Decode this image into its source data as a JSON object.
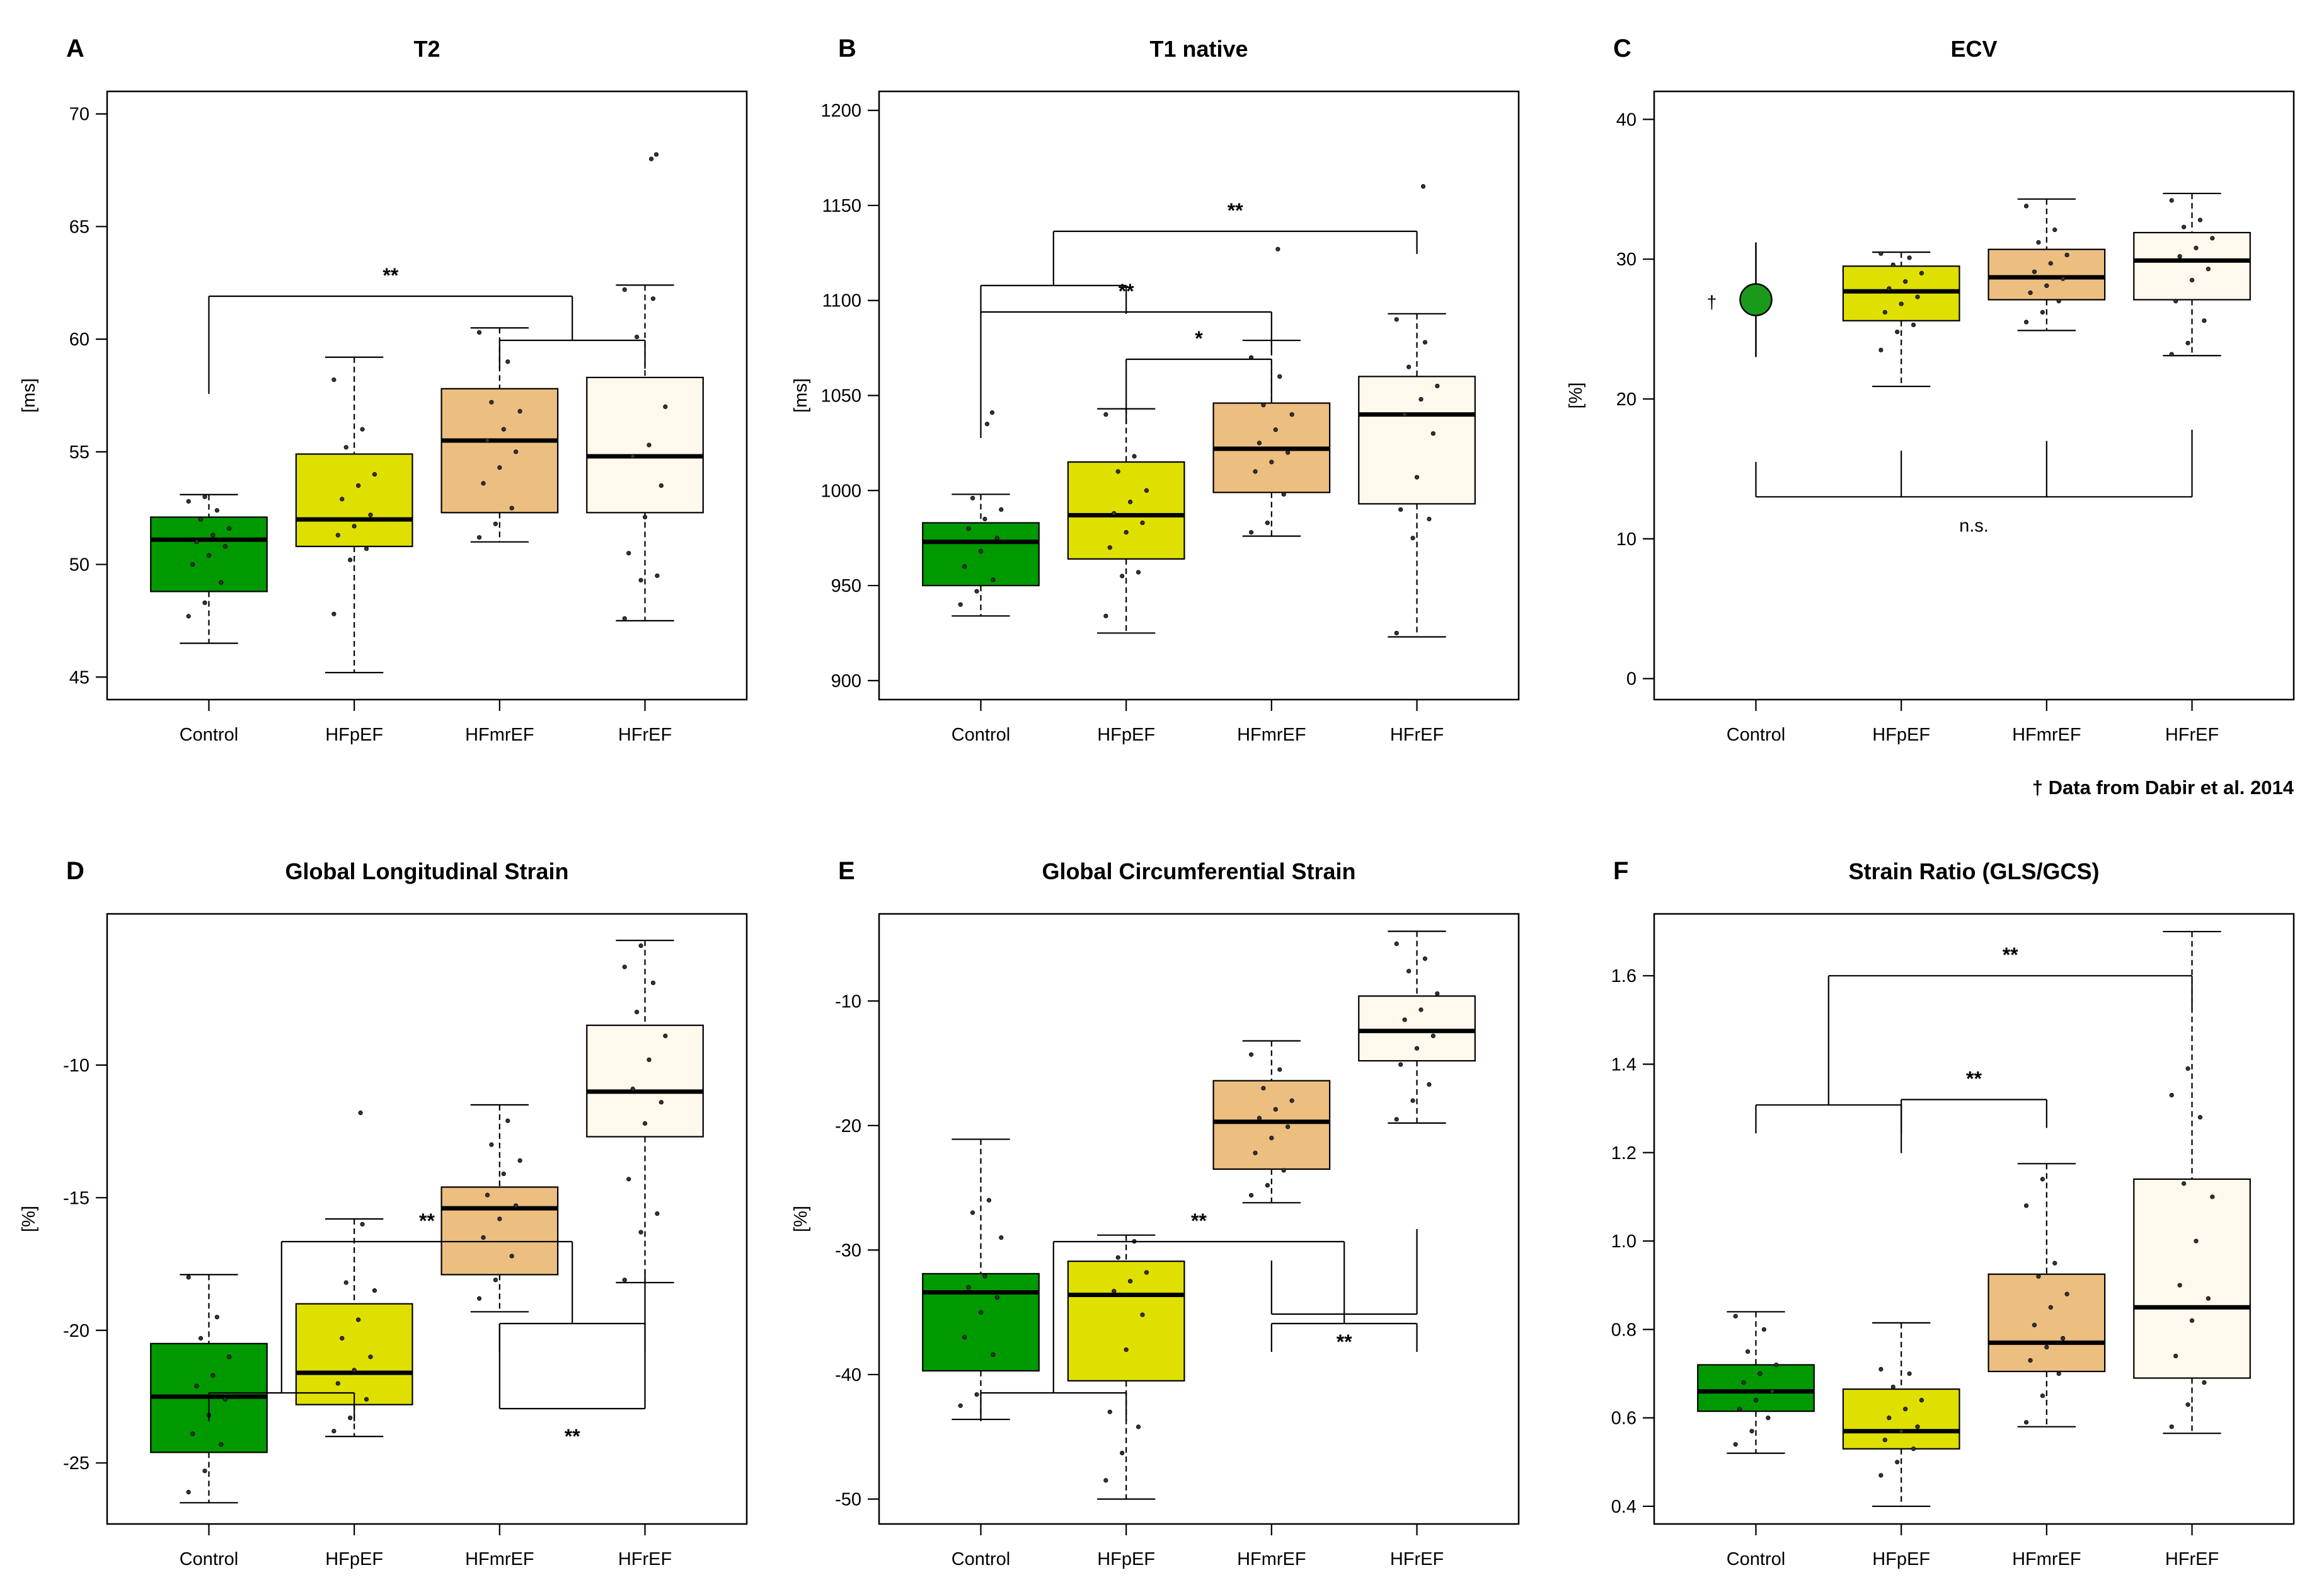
{
  "colors": {
    "Control": "#009a00",
    "HFpEF": "#dfe000",
    "HFmrEF": "#ecbf80",
    "HFrEF": "#fef9ec",
    "ecv_marker": "#1a9a1a"
  },
  "footnote": "† Data from Dabir et al. 2014",
  "chart_data": [
    {
      "type": "box",
      "letter": "A",
      "title": "T2",
      "xlabel": "",
      "ylabel": "[ms]",
      "categories": [
        "Control",
        "HFpEF",
        "HFmrEF",
        "HFrEF"
      ],
      "ylim": [
        44,
        71
      ],
      "yticks": [
        "45",
        "50",
        "55",
        "60",
        "65",
        "70"
      ],
      "boxes": [
        {
          "whisker_low": 46.5,
          "q1": 48.8,
          "median": 51.1,
          "q3": 52.1,
          "whisker_high": 53.1,
          "points": [
            47.7,
            48.3,
            49.2,
            50.0,
            50.4,
            50.8,
            51.0,
            51.3,
            51.6,
            52.0,
            52.4,
            52.8,
            53.0
          ]
        },
        {
          "whisker_low": 45.2,
          "q1": 50.8,
          "median": 52.0,
          "q3": 54.9,
          "whisker_high": 59.2,
          "points": [
            47.8,
            50.2,
            50.7,
            51.3,
            51.7,
            52.2,
            52.9,
            53.5,
            54.0,
            55.2,
            56.0,
            58.2
          ]
        },
        {
          "whisker_low": 51.0,
          "q1": 52.3,
          "median": 55.5,
          "q3": 57.8,
          "whisker_high": 60.5,
          "points": [
            51.2,
            51.8,
            52.5,
            53.6,
            54.3,
            55.0,
            55.5,
            56.0,
            56.8,
            57.2,
            59.0,
            60.3
          ]
        },
        {
          "whisker_low": 47.5,
          "q1": 52.3,
          "median": 54.8,
          "q3": 58.3,
          "whisker_high": 62.4,
          "points": [
            47.6,
            49.3,
            49.5,
            50.5,
            52.1,
            53.5,
            54.8,
            55.3,
            57.0,
            60.1,
            61.8,
            62.2
          ],
          "outliers": [
            68.0,
            68.2
          ]
        }
      ],
      "brackets": [
        {
          "pair": [
            0,
            [
              2,
              3
            ]
          ],
          "label": "**"
        }
      ]
    },
    {
      "type": "box",
      "letter": "B",
      "title": "T1 native",
      "xlabel": "",
      "ylabel": "[ms]",
      "categories": [
        "Control",
        "HFpEF",
        "HFmrEF",
        "HFrEF"
      ],
      "ylim": [
        890,
        1210
      ],
      "yticks": [
        "900",
        "950",
        "1000",
        "1050",
        "1100",
        "1150",
        "1200"
      ],
      "boxes": [
        {
          "whisker_low": 934,
          "q1": 950,
          "median": 973,
          "q3": 983,
          "whisker_high": 998,
          "points": [
            940,
            947,
            953,
            960,
            968,
            975,
            980,
            985,
            990,
            996
          ],
          "outliers": [
            1035,
            1041
          ]
        },
        {
          "whisker_low": 925,
          "q1": 964,
          "median": 987,
          "q3": 1015,
          "whisker_high": 1043,
          "points": [
            934,
            955,
            957,
            970,
            978,
            983,
            988,
            994,
            1000,
            1010,
            1018,
            1040
          ]
        },
        {
          "whisker_low": 976,
          "q1": 999,
          "median": 1022,
          "q3": 1046,
          "whisker_high": 1079,
          "points": [
            978,
            983,
            998,
            1010,
            1015,
            1020,
            1025,
            1032,
            1040,
            1045,
            1060,
            1070
          ],
          "outliers": [
            1127
          ]
        },
        {
          "whisker_low": 923,
          "q1": 993,
          "median": 1040,
          "q3": 1060,
          "whisker_high": 1093,
          "points": [
            925,
            975,
            985,
            990,
            1007,
            1030,
            1040,
            1048,
            1055,
            1065,
            1078,
            1090
          ],
          "outliers": [
            1160
          ]
        }
      ],
      "brackets": [
        {
          "pair": [
            [
              0,
              1
            ],
            3
          ],
          "label": "**"
        },
        {
          "pair": [
            0,
            2
          ],
          "label": "**"
        },
        {
          "pair": [
            1,
            2
          ],
          "label": "*"
        }
      ]
    },
    {
      "type": "box",
      "letter": "C",
      "title": "ECV",
      "xlabel": "",
      "ylabel": "[%]",
      "categories": [
        "Control",
        "HFpEF",
        "HFmrEF",
        "HFrEF"
      ],
      "ylim": [
        -1.5,
        42
      ],
      "yticks": [
        "0",
        "10",
        "20",
        "30",
        "40"
      ],
      "reference": {
        "index": 0,
        "mean": 27.1,
        "low": 23.0,
        "high": 31.2,
        "marker": "†"
      },
      "boxes": [
        null,
        {
          "whisker_low": 20.9,
          "q1": 25.6,
          "median": 27.7,
          "q3": 29.5,
          "whisker_high": 30.5,
          "points": [
            23.5,
            24.8,
            25.3,
            26.2,
            26.8,
            27.3,
            27.9,
            28.4,
            29.0,
            29.6,
            30.1,
            30.4
          ]
        },
        {
          "whisker_low": 24.9,
          "q1": 27.1,
          "median": 28.7,
          "q3": 30.7,
          "whisker_high": 34.3,
          "points": [
            25.5,
            26.2,
            27.0,
            27.6,
            28.1,
            28.6,
            29.1,
            29.7,
            30.3,
            31.2,
            32.1,
            33.8
          ]
        },
        {
          "whisker_low": 23.1,
          "q1": 27.1,
          "median": 29.9,
          "q3": 31.9,
          "whisker_high": 34.7,
          "points": [
            23.2,
            24.0,
            25.6,
            27.0,
            28.5,
            29.3,
            30.2,
            30.8,
            31.5,
            32.3,
            32.8,
            34.2
          ]
        }
      ],
      "brackets": [],
      "comb": {
        "members": [
          0,
          1,
          2,
          3
        ],
        "label": "n.s."
      }
    },
    {
      "type": "box",
      "letter": "D",
      "title": "Global Longitudinal Strain",
      "xlabel": "",
      "ylabel": "[%]",
      "categories": [
        "Control",
        "HFpEF",
        "HFmrEF",
        "HFrEF"
      ],
      "ylim": [
        -27.3,
        -4.3
      ],
      "yticks": [
        "-25",
        "-20",
        "-15",
        "-10"
      ],
      "boxes": [
        {
          "whisker_low": -26.5,
          "q1": -24.6,
          "median": -22.5,
          "q3": -20.5,
          "whisker_high": -17.9,
          "points": [
            -26.1,
            -25.3,
            -24.3,
            -23.9,
            -23.2,
            -22.6,
            -22.1,
            -21.7,
            -21.0,
            -20.3,
            -19.5,
            -18.0
          ]
        },
        {
          "whisker_low": -24.0,
          "q1": -22.8,
          "median": -21.6,
          "q3": -19.0,
          "whisker_high": -15.8,
          "points": [
            -23.8,
            -23.3,
            -22.6,
            -22.0,
            -21.5,
            -21.0,
            -20.3,
            -19.6,
            -18.5,
            -18.2,
            -16.0
          ],
          "outliers": [
            -11.8
          ]
        },
        {
          "whisker_low": -19.3,
          "q1": -17.9,
          "median": -15.4,
          "q3": -14.6,
          "whisker_high": -11.5,
          "points": [
            -18.8,
            -18.1,
            -17.2,
            -16.5,
            -15.8,
            -15.3,
            -14.9,
            -14.1,
            -13.6,
            -13.0,
            -12.1
          ]
        },
        {
          "whisker_low": -18.2,
          "q1": -12.7,
          "median": -11.0,
          "q3": -8.5,
          "whisker_high": -5.3,
          "points": [
            -18.1,
            -16.3,
            -15.6,
            -14.3,
            -12.2,
            -11.4,
            -10.9,
            -9.8,
            -8.9,
            -8.0,
            -6.9,
            -6.3,
            -5.5
          ]
        }
      ],
      "brackets": [
        {
          "pair": [
            [
              0,
              1
            ],
            [
              2,
              3
            ]
          ],
          "label": "**"
        },
        {
          "pair": [
            2,
            3
          ],
          "label": "**",
          "below": true
        }
      ]
    },
    {
      "type": "box",
      "letter": "E",
      "title": "Global Circumferential Strain",
      "xlabel": "",
      "ylabel": "[%]",
      "categories": [
        "Control",
        "HFpEF",
        "HFmrEF",
        "HFrEF"
      ],
      "ylim": [
        -52,
        -3
      ],
      "yticks": [
        "-50",
        "-40",
        "-30",
        "-20",
        "-10"
      ],
      "boxes": [
        {
          "whisker_low": -43.6,
          "q1": -39.7,
          "median": -33.4,
          "q3": -31.9,
          "whisker_high": -21.1,
          "points": [
            -42.5,
            -41.6,
            -38.4,
            -37.0,
            -35.0,
            -33.8,
            -33.0,
            -32.1,
            -29.0,
            -27.0,
            -26.0
          ]
        },
        {
          "whisker_low": -50.0,
          "q1": -40.5,
          "median": -33.6,
          "q3": -30.9,
          "whisker_high": -28.8,
          "points": [
            -48.5,
            -46.3,
            -44.2,
            -43.0,
            -38.0,
            -35.2,
            -33.3,
            -32.5,
            -31.8,
            -30.6,
            -29.3
          ]
        },
        {
          "whisker_low": -26.2,
          "q1": -23.5,
          "median": -19.7,
          "q3": -16.4,
          "whisker_high": -13.2,
          "points": [
            -25.6,
            -24.8,
            -23.6,
            -22.2,
            -21.0,
            -20.1,
            -19.4,
            -18.7,
            -18.0,
            -17.0,
            -15.5,
            -14.3
          ]
        },
        {
          "whisker_low": -19.8,
          "q1": -14.8,
          "median": -12.4,
          "q3": -9.6,
          "whisker_high": -4.4,
          "points": [
            -19.5,
            -18.0,
            -16.7,
            -15.1,
            -13.8,
            -12.8,
            -11.5,
            -10.7,
            -9.4,
            -7.6,
            -6.6,
            -5.4
          ]
        }
      ],
      "brackets": [
        {
          "pair": [
            [
              0,
              1
            ],
            [
              2,
              3
            ]
          ],
          "label": "**"
        },
        {
          "pair": [
            2,
            3
          ],
          "label": "**",
          "below": true
        }
      ]
    },
    {
      "type": "box",
      "letter": "F",
      "title": "Strain Ratio (GLS/GCS)",
      "xlabel": "",
      "ylabel": "",
      "categories": [
        "Control",
        "HFpEF",
        "HFmrEF",
        "HFrEF"
      ],
      "ylim": [
        0.36,
        1.74
      ],
      "yticks": [
        "0.4",
        "0.6",
        "0.8",
        "1.0",
        "1.2",
        "1.4",
        "1.6"
      ],
      "boxes": [
        {
          "whisker_low": 0.52,
          "q1": 0.615,
          "median": 0.66,
          "q3": 0.72,
          "whisker_high": 0.84,
          "points": [
            0.54,
            0.57,
            0.6,
            0.62,
            0.64,
            0.66,
            0.68,
            0.7,
            0.72,
            0.75,
            0.8,
            0.83
          ]
        },
        {
          "whisker_low": 0.4,
          "q1": 0.53,
          "median": 0.57,
          "q3": 0.665,
          "whisker_high": 0.815,
          "points": [
            0.47,
            0.5,
            0.53,
            0.55,
            0.57,
            0.58,
            0.6,
            0.62,
            0.64,
            0.67,
            0.7,
            0.71
          ]
        },
        {
          "whisker_low": 0.58,
          "q1": 0.705,
          "median": 0.77,
          "q3": 0.925,
          "whisker_high": 1.175,
          "points": [
            0.59,
            0.65,
            0.7,
            0.73,
            0.76,
            0.78,
            0.81,
            0.85,
            0.88,
            0.92,
            0.95,
            1.08,
            1.14
          ]
        },
        {
          "whisker_low": 0.565,
          "q1": 0.69,
          "median": 0.85,
          "q3": 1.14,
          "whisker_high": 1.7,
          "points": [
            0.58,
            0.63,
            0.68,
            0.74,
            0.82,
            0.87,
            0.9,
            1.0,
            1.1,
            1.13,
            1.28,
            1.33,
            1.39
          ]
        }
      ],
      "brackets": [
        {
          "pair": [
            [
              0,
              1
            ],
            3
          ],
          "label": "**"
        },
        {
          "pair": [
            1,
            2
          ],
          "label": "**"
        }
      ]
    }
  ]
}
